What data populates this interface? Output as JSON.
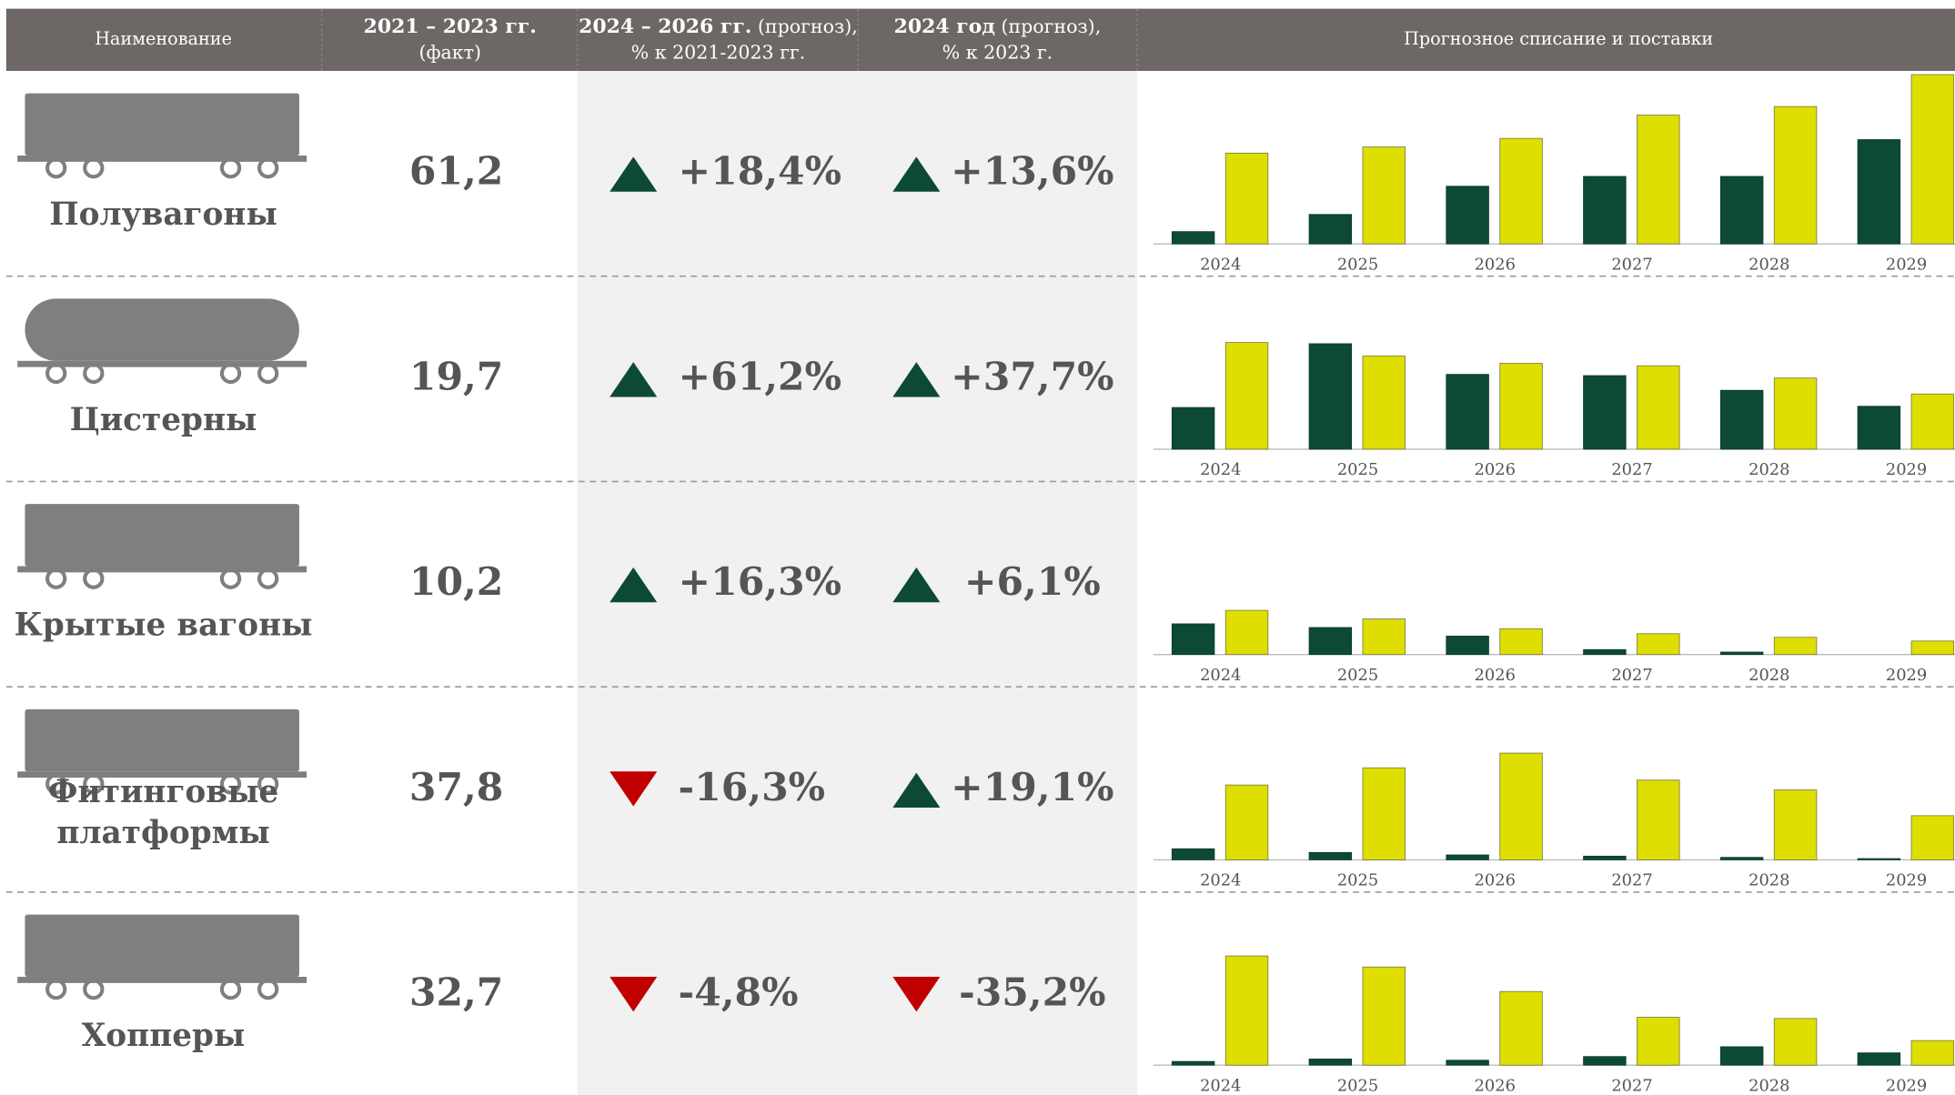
{
  "header": {
    "name": "Наименование",
    "fact": {
      "line1": "2021 – 2023 гг.",
      "line2": "(факт)"
    },
    "forecast_period": {
      "bold": "2024 – 2026 гг.",
      "rest": " (прогноз),",
      "line2": "% к 2021-2023 гг."
    },
    "forecast_year": {
      "bold": "2024 год",
      "rest": " (прогноз),",
      "line2": "% к 2023 г."
    },
    "chart": "Прогнозное списание и поставки"
  },
  "rows": [
    {
      "name": [
        "Полувагоны"
      ],
      "fact": "61,2",
      "forecast_period": "+18,4%",
      "forecast_year": "+13,6%",
      "chart": {
        "type": "bar",
        "categories": [
          "2024",
          "2025",
          "2026",
          "2027",
          "2028",
          "2029"
        ],
        "ylim": [
          0,
          140
        ],
        "series": [
          {
            "color": "#0d4a36",
            "values": [
              10,
              24,
              47,
              55,
              55,
              85
            ]
          },
          {
            "color": "#dede00",
            "values": [
              74,
              79,
              86,
              105,
              112,
              138
            ]
          }
        ]
      }
    },
    {
      "name": [
        "Цистерны"
      ],
      "fact": "19,7",
      "forecast_period": "+61,2%",
      "forecast_year": "+37,7%",
      "chart": {
        "type": "bar",
        "categories": [
          "2024",
          "2025",
          "2026",
          "2027",
          "2028",
          "2029"
        ],
        "ylim": [
          0,
          140
        ],
        "series": [
          {
            "color": "#0d4a36",
            "values": [
              34,
              86,
              61,
              60,
              48,
              35
            ]
          },
          {
            "color": "#dede00",
            "values": [
              87,
              76,
              70,
              68,
              58,
              45
            ]
          }
        ]
      }
    },
    {
      "name": [
        "Крытые вагоны"
      ],
      "fact": "10,2",
      "forecast_period": "+16,3%",
      "forecast_year": "+6,1%",
      "chart": {
        "type": "bar",
        "categories": [
          "2024",
          "2025",
          "2026",
          "2027",
          "2028",
          "2029"
        ],
        "ylim": [
          0,
          140
        ],
        "series": [
          {
            "color": "#0d4a36",
            "values": [
              25,
              22,
              15,
              4,
              2,
              0
            ]
          },
          {
            "color": "#dede00",
            "values": [
              36,
              29,
              21,
              17,
              14,
              11
            ]
          }
        ]
      }
    },
    {
      "name": [
        "Фитинговые",
        "платформы"
      ],
      "fact": "37,8",
      "forecast_period": "-16,3%",
      "forecast_year": "+19,1%",
      "chart": {
        "type": "bar",
        "categories": [
          "2024",
          "2025",
          "2026",
          "2027",
          "2028",
          "2029"
        ],
        "ylim": [
          0,
          140
        ],
        "series": [
          {
            "color": "#0d4a36",
            "values": [
              9,
              6,
              4,
              3,
              2,
              1
            ]
          },
          {
            "color": "#dede00",
            "values": [
              61,
              75,
              87,
              65,
              57,
              36
            ]
          }
        ]
      }
    },
    {
      "name": [
        "Хопперы"
      ],
      "fact": "32,7",
      "forecast_period": "-4,8%",
      "forecast_year": "-35,2%",
      "chart": {
        "type": "bar",
        "categories": [
          "2024",
          "2025",
          "2026",
          "2027",
          "2028",
          "2029"
        ],
        "ylim": [
          0,
          140
        ],
        "series": [
          {
            "color": "#0d4a36",
            "values": [
              3,
              5,
              4,
              7,
              15,
              10
            ]
          },
          {
            "color": "#dede00",
            "values": [
              89,
              80,
              60,
              39,
              38,
              20
            ]
          }
        ]
      }
    }
  ]
}
